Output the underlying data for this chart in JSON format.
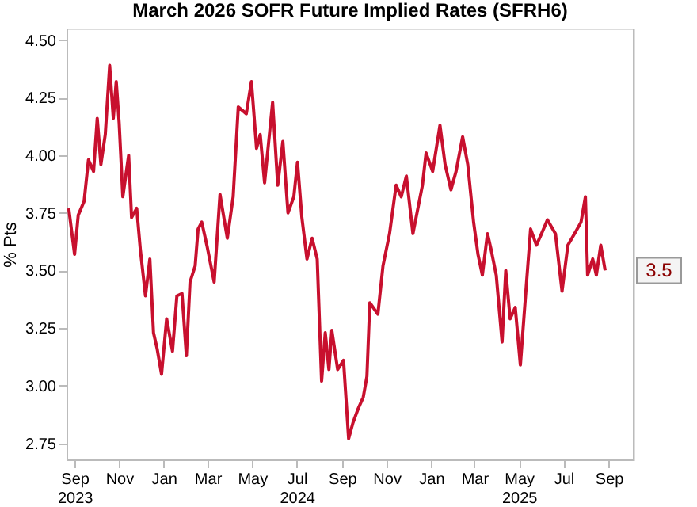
{
  "chart_data": {
    "type": "line",
    "title": "March 2026 SOFR Future Implied Rates (SFRH6)",
    "ylabel": "% Pts",
    "x": [
      "2023-08-24",
      "2023-09-01",
      "2023-09-06",
      "2023-09-14",
      "2023-09-20",
      "2023-09-27",
      "2023-10-02",
      "2023-10-07",
      "2023-10-13",
      "2023-10-19",
      "2023-10-24",
      "2023-10-28",
      "2023-11-01",
      "2023-11-06",
      "2023-11-14",
      "2023-11-18",
      "2023-11-25",
      "2023-11-30",
      "2023-12-07",
      "2023-12-13",
      "2023-12-18",
      "2023-12-23",
      "2023-12-29",
      "2024-01-05",
      "2024-01-13",
      "2024-01-19",
      "2024-01-26",
      "2024-02-01",
      "2024-02-06",
      "2024-02-13",
      "2024-02-17",
      "2024-02-22",
      "2024-02-29",
      "2024-03-10",
      "2024-03-18",
      "2024-03-28",
      "2024-04-05",
      "2024-04-12",
      "2024-04-23",
      "2024-04-30",
      "2024-05-07",
      "2024-05-12",
      "2024-05-18",
      "2024-05-29",
      "2024-06-05",
      "2024-06-12",
      "2024-06-19",
      "2024-06-27",
      "2024-07-02",
      "2024-07-08",
      "2024-07-15",
      "2024-07-22",
      "2024-07-29",
      "2024-08-04",
      "2024-08-09",
      "2024-08-14",
      "2024-08-18",
      "2024-08-26",
      "2024-09-03",
      "2024-09-10",
      "2024-09-16",
      "2024-09-23",
      "2024-09-30",
      "2024-10-05",
      "2024-10-09",
      "2024-10-20",
      "2024-10-27",
      "2024-11-05",
      "2024-11-14",
      "2024-11-21",
      "2024-11-28",
      "2024-12-07",
      "2024-12-20",
      "2024-12-25",
      "2025-01-03",
      "2025-01-13",
      "2025-01-20",
      "2025-01-28",
      "2025-02-04",
      "2025-02-13",
      "2025-02-20",
      "2025-02-28",
      "2025-03-06",
      "2025-03-12",
      "2025-03-19",
      "2025-03-24",
      "2025-03-31",
      "2025-04-08",
      "2025-04-13",
      "2025-04-19",
      "2025-04-26",
      "2025-05-03",
      "2025-05-11",
      "2025-05-17",
      "2025-05-25",
      "2025-06-01",
      "2025-06-09",
      "2025-06-20",
      "2025-06-29",
      "2025-07-07",
      "2025-07-18",
      "2025-07-25",
      "2025-07-31",
      "2025-08-03",
      "2025-08-10",
      "2025-08-15",
      "2025-08-21",
      "2025-08-27"
    ],
    "series": [
      {
        "color": "#c8102e",
        "values": [
          3.77,
          3.57,
          3.74,
          3.8,
          3.98,
          3.93,
          4.16,
          3.96,
          4.09,
          4.39,
          4.16,
          4.32,
          4.14,
          3.82,
          4.0,
          3.73,
          3.77,
          3.59,
          3.39,
          3.55,
          3.23,
          3.16,
          3.05,
          3.29,
          3.15,
          3.39,
          3.4,
          3.13,
          3.45,
          3.52,
          3.68,
          3.71,
          3.61,
          3.45,
          3.83,
          3.64,
          3.82,
          4.21,
          4.18,
          4.32,
          4.03,
          4.09,
          3.88,
          4.23,
          3.87,
          4.06,
          3.75,
          3.82,
          3.97,
          3.73,
          3.55,
          3.64,
          3.55,
          3.02,
          3.23,
          3.07,
          3.24,
          3.07,
          3.11,
          2.77,
          2.84,
          2.9,
          2.95,
          3.04,
          3.36,
          3.31,
          3.52,
          3.66,
          3.87,
          3.82,
          3.91,
          3.66,
          3.87,
          4.01,
          3.93,
          4.13,
          3.96,
          3.85,
          3.93,
          4.08,
          3.96,
          3.71,
          3.57,
          3.48,
          3.66,
          3.59,
          3.48,
          3.19,
          3.5,
          3.29,
          3.34,
          3.09,
          3.43,
          3.68,
          3.61,
          3.66,
          3.72,
          3.66,
          3.41,
          3.61,
          3.67,
          3.71,
          3.82,
          3.48,
          3.55,
          3.48,
          3.61,
          3.5
        ]
      }
    ],
    "xlim": [
      "2023-08-21",
      "2025-10-05"
    ],
    "xticks": [
      {
        "value": "2023-09-01",
        "label": "Sep\n2023"
      },
      {
        "value": "2023-11-01",
        "label": "Nov"
      },
      {
        "value": "2024-01-01",
        "label": "Jan"
      },
      {
        "value": "2024-03-01",
        "label": "Mar"
      },
      {
        "value": "2024-05-01",
        "label": "May"
      },
      {
        "value": "2024-07-01",
        "label": "Jul\n2024"
      },
      {
        "value": "2024-09-01",
        "label": "Sep"
      },
      {
        "value": "2024-11-01",
        "label": "Nov"
      },
      {
        "value": "2025-01-01",
        "label": "Jan"
      },
      {
        "value": "2025-03-01",
        "label": "Mar"
      },
      {
        "value": "2025-05-01",
        "label": "May\n2025"
      },
      {
        "value": "2025-07-01",
        "label": "Jul"
      },
      {
        "value": "2025-09-01",
        "label": "Sep"
      }
    ],
    "ylim": [
      2.68,
      4.55
    ],
    "yticks": [
      {
        "value": 2.75,
        "label": "2.75"
      },
      {
        "value": 3.0,
        "label": "3.00"
      },
      {
        "value": 3.25,
        "label": "3.25"
      },
      {
        "value": 3.5,
        "label": "3.50"
      },
      {
        "value": 3.75,
        "label": "3.75"
      },
      {
        "value": 4.0,
        "label": "4.00"
      },
      {
        "value": 4.25,
        "label": "4.25"
      },
      {
        "value": 4.5,
        "label": "4.50"
      }
    ],
    "annotations": [
      {
        "text": "3.5",
        "x": "2025-08-27",
        "y": 3.5
      }
    ],
    "grid": false,
    "marker": "none",
    "line_style": "solid"
  }
}
